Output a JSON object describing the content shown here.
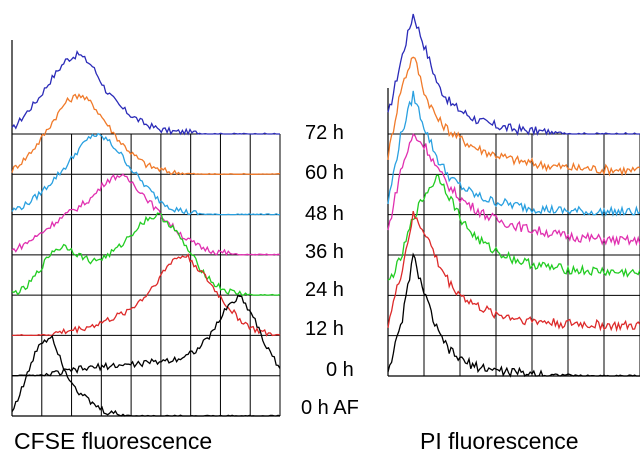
{
  "time_labels": [
    "72 h",
    "60 h",
    "48 h",
    "36 h",
    "24 h",
    "12 h",
    "0 h",
    "0 h AF"
  ],
  "chart_data": [
    {
      "type": "line",
      "xlabel": "CFSE fluorescence",
      "ylabel": "",
      "title": "",
      "grid": true,
      "grid_columns": 9,
      "x": [
        0,
        0.05,
        0.1,
        0.15,
        0.2,
        0.25,
        0.3,
        0.35,
        0.4,
        0.45,
        0.5,
        0.55,
        0.6,
        0.65,
        0.7,
        0.75,
        0.8,
        0.85,
        0.9,
        0.95,
        1
      ],
      "series": [
        {
          "label": "72 h",
          "color": "#2b2bb8",
          "values": [
            0.05,
            0.25,
            0.45,
            0.7,
            0.92,
            1.0,
            0.85,
            0.55,
            0.35,
            0.22,
            0.12,
            0.06,
            0.03,
            0.02,
            0.01,
            0.0,
            0.0,
            0.0,
            0.0,
            0.0,
            0.0
          ]
        },
        {
          "label": "60 h",
          "color": "#f07a2a",
          "values": [
            0.05,
            0.2,
            0.4,
            0.65,
            0.9,
            1.0,
            0.88,
            0.65,
            0.42,
            0.25,
            0.12,
            0.06,
            0.02,
            0.01,
            0.0,
            0.0,
            0.0,
            0.0,
            0.0,
            0.0,
            0.0
          ]
        },
        {
          "label": "48 h",
          "color": "#2aa0e0",
          "values": [
            0.05,
            0.12,
            0.25,
            0.42,
            0.6,
            0.82,
            1.0,
            0.95,
            0.78,
            0.55,
            0.35,
            0.18,
            0.08,
            0.03,
            0.01,
            0.0,
            0.0,
            0.0,
            0.0,
            0.0,
            0.0
          ]
        },
        {
          "label": "36 h",
          "color": "#e030b0",
          "values": [
            0.05,
            0.14,
            0.25,
            0.38,
            0.5,
            0.6,
            0.72,
            0.92,
            1.0,
            0.9,
            0.72,
            0.52,
            0.35,
            0.2,
            0.1,
            0.05,
            0.02,
            0.0,
            0.0,
            0.0,
            0.0
          ]
        },
        {
          "label": "24 h",
          "color": "#22cc22",
          "values": [
            0.02,
            0.08,
            0.3,
            0.55,
            0.62,
            0.5,
            0.42,
            0.48,
            0.6,
            0.78,
            0.95,
            1.0,
            0.85,
            0.6,
            0.35,
            0.15,
            0.05,
            0.02,
            0.0,
            0.0,
            0.0
          ]
        },
        {
          "label": "12 h",
          "color": "#dd2a2a",
          "values": [
            0.0,
            0.0,
            0.0,
            0.02,
            0.05,
            0.08,
            0.12,
            0.18,
            0.25,
            0.35,
            0.5,
            0.72,
            0.95,
            1.0,
            0.82,
            0.6,
            0.38,
            0.2,
            0.08,
            0.02,
            0.0
          ]
        },
        {
          "label": "0 h",
          "color": "#000000",
          "values": [
            0.0,
            0.0,
            0.0,
            0.02,
            0.05,
            0.08,
            0.1,
            0.12,
            0.13,
            0.14,
            0.16,
            0.18,
            0.2,
            0.25,
            0.35,
            0.55,
            0.85,
            1.0,
            0.75,
            0.35,
            0.1
          ]
        },
        {
          "label": "0 h AF",
          "color": "#000000",
          "values": [
            0.05,
            0.45,
            0.9,
            1.0,
            0.55,
            0.3,
            0.15,
            0.05,
            0.02,
            0.0,
            0.0,
            0.0,
            0.0,
            0.0,
            0.0,
            0.0,
            0.0,
            0.0,
            0.0,
            0.0,
            0.0
          ]
        }
      ]
    },
    {
      "type": "line",
      "xlabel": "PI fluorescence",
      "ylabel": "",
      "title": "",
      "grid": true,
      "grid_columns": 7,
      "x": [
        0,
        0.05,
        0.1,
        0.15,
        0.2,
        0.25,
        0.3,
        0.35,
        0.4,
        0.45,
        0.5,
        0.55,
        0.6,
        0.65,
        0.7,
        0.75,
        0.8,
        0.85,
        0.9,
        0.95,
        1
      ],
      "series": [
        {
          "label": "72 h",
          "color": "#2b2bb8",
          "values": [
            0.15,
            0.6,
            1.0,
            0.7,
            0.4,
            0.25,
            0.18,
            0.12,
            0.08,
            0.06,
            0.04,
            0.03,
            0.02,
            0.01,
            0.01,
            0.0,
            0.0,
            0.0,
            0.0,
            0.0,
            0.0
          ]
        },
        {
          "label": "60 h",
          "color": "#f07a2a",
          "values": [
            0.15,
            0.7,
            1.0,
            0.65,
            0.45,
            0.35,
            0.28,
            0.22,
            0.18,
            0.15,
            0.12,
            0.1,
            0.08,
            0.07,
            0.06,
            0.05,
            0.05,
            0.04,
            0.04,
            0.03,
            0.03
          ]
        },
        {
          "label": "48 h",
          "color": "#2aa0e0",
          "values": [
            0.1,
            0.65,
            1.0,
            0.7,
            0.45,
            0.3,
            0.22,
            0.16,
            0.12,
            0.1,
            0.08,
            0.06,
            0.05,
            0.04,
            0.03,
            0.03,
            0.02,
            0.02,
            0.02,
            0.02,
            0.02
          ]
        },
        {
          "label": "36 h",
          "color": "#e030b0",
          "values": [
            0.2,
            0.7,
            1.0,
            0.9,
            0.7,
            0.55,
            0.45,
            0.38,
            0.32,
            0.28,
            0.25,
            0.22,
            0.2,
            0.18,
            0.16,
            0.15,
            0.14,
            0.13,
            0.12,
            0.12,
            0.11
          ]
        },
        {
          "label": "24 h",
          "color": "#22cc22",
          "values": [
            0.1,
            0.3,
            0.65,
            0.85,
            1.0,
            0.8,
            0.6,
            0.48,
            0.4,
            0.35,
            0.3,
            0.27,
            0.25,
            0.23,
            0.22,
            0.21,
            0.2,
            0.2,
            0.19,
            0.19,
            0.18
          ]
        },
        {
          "label": "12 h",
          "color": "#dd2a2a",
          "values": [
            0.1,
            0.5,
            1.0,
            0.85,
            0.6,
            0.42,
            0.32,
            0.25,
            0.2,
            0.17,
            0.15,
            0.13,
            0.12,
            0.11,
            0.1,
            0.1,
            0.09,
            0.09,
            0.08,
            0.08,
            0.08
          ]
        },
        {
          "label": "0 h",
          "color": "#000000",
          "values": [
            0.05,
            0.4,
            1.0,
            0.65,
            0.35,
            0.2,
            0.12,
            0.08,
            0.06,
            0.04,
            0.03,
            0.02,
            0.02,
            0.01,
            0.01,
            0.0,
            0.0,
            0.0,
            0.0,
            0.0,
            0.0
          ]
        }
      ]
    }
  ]
}
